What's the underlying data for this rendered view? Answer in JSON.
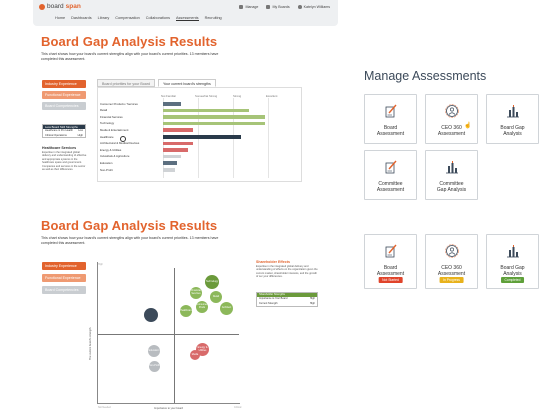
{
  "nav": {
    "logo_board": "board",
    "logo_span": "span",
    "menu": [
      "Home",
      "Dashboards",
      "Library",
      "Compensation",
      "Collaborations",
      "Assessments",
      "Recruiting"
    ],
    "active_item": "Assessments",
    "right": [
      "Manage",
      "My Boards",
      "Katelyn Williams"
    ]
  },
  "panel1": {
    "title": "Board Gap Analysis Results",
    "description": "This chart shows how your board's current strengths align with your board's current priorities. 13 members have completed this assessment.",
    "side_buttons": [
      "Industry Experience",
      "Functional Experience",
      "Board Competencies"
    ],
    "tabs": [
      "Board priorities for your Board",
      "Your current board's strengths"
    ],
    "scale": [
      "Not Familiar",
      "Somewhat Strong",
      "Strong",
      "Excellent"
    ],
    "skills_box": {
      "header": "Less Board Skill Strengths",
      "rows": [
        [
          "Healthcare & Pro Health",
          "Low"
        ],
        [
          "Clinical Operations",
          "High"
        ]
      ]
    },
    "hc_title": "Healthcare Services",
    "hc_desc": "Expertise in the integrated global delivery and understanding of effective and appropriate systems in the healthcare space and government. Companies and services in the sector as well as their differences."
  },
  "chart_data": {
    "type": "bar",
    "title": "",
    "categories": [
      "Consumer Products / Services",
      "Retail",
      "Financial Services",
      "Technology",
      "Media & Entertainment",
      "Healthcare",
      "Architectural & Medical Devices",
      "Energy & Utilities",
      "Industrials & Agriculture",
      "Education",
      "Non-Profit"
    ],
    "values": [
      0.22,
      1.05,
      1.25,
      1.25,
      0.37,
      0.95,
      0.37,
      0.3,
      0.22,
      0.17,
      0.15
    ],
    "xlim": [
      0,
      1.35
    ],
    "colors": [
      "#5c6f80",
      "#a6c478",
      "#a6c478",
      "#a6c478",
      "#d86a6a",
      "#2a3a4a",
      "#d86a6a",
      "#d86a6a",
      "#d0d3d6",
      "#5c6f80",
      "#d0d3d6"
    ]
  },
  "manage": {
    "title": "Manage Assessments",
    "cards_top": [
      {
        "label": "Board\nAssessment",
        "icon": "pencil-doc-icon"
      },
      {
        "label": "CEO 360\nAssessment",
        "icon": "ceo-360-icon"
      },
      {
        "label": "Board Gap\nAnalysis",
        "icon": "bar-chart-icon"
      },
      {
        "label": "Committee\nAssessment",
        "icon": "pencil-doc-icon"
      },
      {
        "label": "Committee\nGap Analysis",
        "icon": "bar-chart-icon"
      }
    ],
    "cards_bottom": [
      {
        "label": "Board\nAssessment",
        "badge": "Not Started",
        "badge_color": "#e0442b"
      },
      {
        "label": "CEO 360\nAssessment",
        "badge": "In Progress",
        "badge_color": "#e8b21c"
      },
      {
        "label": "Board Gap\nAnalysis",
        "badge": "Completed",
        "badge_color": "#5fa03a"
      }
    ]
  },
  "panel2": {
    "title": "Board Gap Analysis Results",
    "description": "This chart shows how your board's current strengths align with your board's current priorities. 13 members have completed this assessment.",
    "side_buttons": [
      "Industry Experience",
      "Functional Experience",
      "Board Competencies"
    ],
    "y_axis": "The current board's strength",
    "x_axis": "Importance to your board",
    "corners": {
      "top_left": "High",
      "bottom_left": "Not Needed",
      "bottom_right": "Critical"
    },
    "bubbles": [
      {
        "label": "Technology",
        "color": "#6b9a3b"
      },
      {
        "label": "Financial Services",
        "color": "#8cb85a"
      },
      {
        "label": "Retail",
        "color": "#8cb85a"
      },
      {
        "label": "Consumer Prods",
        "color": "#8cb85a"
      },
      {
        "label": "Healthcare",
        "color": "#8cb85a"
      },
      {
        "label": "Architect",
        "color": "#8cb85a"
      },
      {
        "label": "",
        "color": "#3c4a5a"
      },
      {
        "label": "Energy & Utilities",
        "color": "#d86a6a"
      },
      {
        "label": "Media",
        "color": "#d86a6a"
      },
      {
        "label": "Education",
        "color": "#b8bcc0"
      },
      {
        "label": "Non-Profit",
        "color": "#b8bcc0"
      }
    ],
    "so_title": "Shareholder Effects",
    "so_desc": "Expertise in the integrated global delivery and understanding of effects on the organization given the current market, shareholder interests, and the growth of our your differences.",
    "so_box": {
      "header": "Shareholder Strengths",
      "rows": [
        [
          "Importance to Your Board",
          "High"
        ],
        [
          "Current Strength",
          "High"
        ]
      ]
    }
  }
}
